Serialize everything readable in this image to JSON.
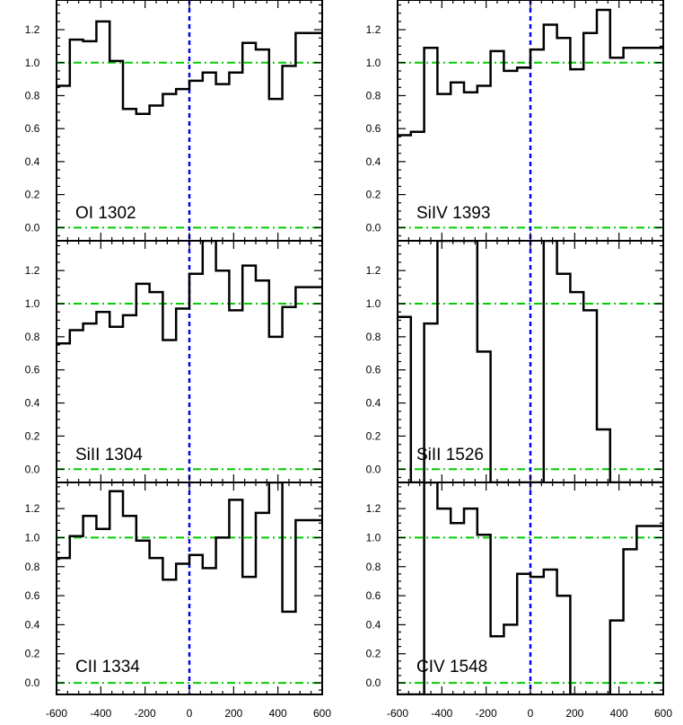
{
  "chart_data": {
    "type": "line",
    "layout": "grid-3x2",
    "x_ticks": [
      -600,
      -400,
      -200,
      0,
      200,
      400,
      600
    ],
    "y_ticks": [
      0.0,
      0.2,
      0.4,
      0.6,
      0.8,
      1.0,
      1.2
    ],
    "xlim": [
      -600,
      600
    ],
    "ylim": [
      -0.08,
      1.38
    ],
    "continuum": 1.0,
    "zero_level": 0.0,
    "velocity_zero": 0,
    "colors": {
      "step": "#000000",
      "reference": "#00cc00",
      "zero_line": "#0000ff"
    },
    "panels": [
      {
        "label": "OI 1302",
        "row": 0,
        "col": 0,
        "bin_width": 60,
        "x": [
          -600,
          -540,
          -480,
          -420,
          -360,
          -300,
          -240,
          -180,
          -120,
          -60,
          0,
          60,
          120,
          180,
          240,
          300,
          360,
          420,
          480,
          540
        ],
        "values": [
          0.86,
          1.14,
          1.13,
          1.25,
          1.01,
          0.72,
          0.69,
          0.74,
          0.81,
          0.84,
          0.89,
          0.94,
          0.87,
          0.94,
          1.12,
          1.08,
          0.78,
          0.98,
          1.18,
          1.18
        ]
      },
      {
        "label": "SiIV 1393",
        "row": 0,
        "col": 1,
        "bin_width": 60,
        "x": [
          -600,
          -540,
          -480,
          -420,
          -360,
          -300,
          -240,
          -180,
          -120,
          -60,
          0,
          60,
          120,
          180,
          240,
          300,
          360,
          420,
          480,
          540
        ],
        "values": [
          0.56,
          0.58,
          1.09,
          0.81,
          0.88,
          0.82,
          0.86,
          1.07,
          0.95,
          0.97,
          1.08,
          1.23,
          1.15,
          0.96,
          1.18,
          1.32,
          1.03,
          1.09,
          1.09,
          1.09
        ]
      },
      {
        "label": "SiII 1304",
        "row": 1,
        "col": 0,
        "bin_width": 60,
        "x": [
          -600,
          -540,
          -480,
          -420,
          -360,
          -300,
          -240,
          -180,
          -120,
          -60,
          0,
          60,
          120,
          180,
          240,
          300,
          360,
          420,
          480,
          540
        ],
        "values": [
          0.76,
          0.84,
          0.88,
          0.95,
          0.86,
          0.93,
          1.12,
          1.07,
          0.78,
          0.97,
          1.18,
          1.38,
          1.2,
          0.96,
          1.23,
          1.14,
          0.8,
          0.98,
          1.1,
          1.1
        ]
      },
      {
        "label": "SiII 1526",
        "row": 1,
        "col": 1,
        "bin_width": 60,
        "x": [
          -600,
          -540,
          -480,
          -420,
          -360,
          -300,
          -240,
          -180,
          -120,
          -60,
          0,
          60,
          120,
          180,
          240,
          300,
          360,
          420,
          480,
          540
        ],
        "values": [
          0.92,
          -0.08,
          0.88,
          1.38,
          1.38,
          1.38,
          0.71,
          -0.08,
          -0.08,
          -0.08,
          -0.08,
          1.38,
          1.18,
          1.07,
          0.96,
          0.24,
          -0.08,
          -0.08,
          -0.08,
          -0.08
        ]
      },
      {
        "label": "CII 1334",
        "row": 2,
        "col": 0,
        "bin_width": 60,
        "x": [
          -600,
          -540,
          -480,
          -420,
          -360,
          -300,
          -240,
          -180,
          -120,
          -60,
          0,
          60,
          120,
          180,
          240,
          300,
          360,
          420,
          480,
          540
        ],
        "values": [
          0.86,
          1.01,
          1.15,
          1.06,
          1.32,
          1.15,
          0.98,
          0.86,
          0.71,
          0.82,
          0.88,
          0.79,
          1.0,
          1.26,
          0.73,
          1.17,
          1.38,
          0.49,
          1.12,
          1.12
        ]
      },
      {
        "label": "CIV 1548",
        "row": 2,
        "col": 1,
        "bin_width": 60,
        "x": [
          -600,
          -540,
          -480,
          -420,
          -360,
          -300,
          -240,
          -180,
          -120,
          -60,
          0,
          60,
          120,
          180,
          240,
          300,
          360,
          420,
          480,
          540
        ],
        "values": [
          -0.08,
          -0.08,
          1.38,
          1.2,
          1.1,
          1.2,
          1.02,
          0.32,
          0.4,
          0.75,
          0.73,
          0.78,
          0.6,
          -0.08,
          -0.08,
          -0.08,
          0.43,
          0.92,
          1.08,
          1.08
        ]
      }
    ]
  }
}
